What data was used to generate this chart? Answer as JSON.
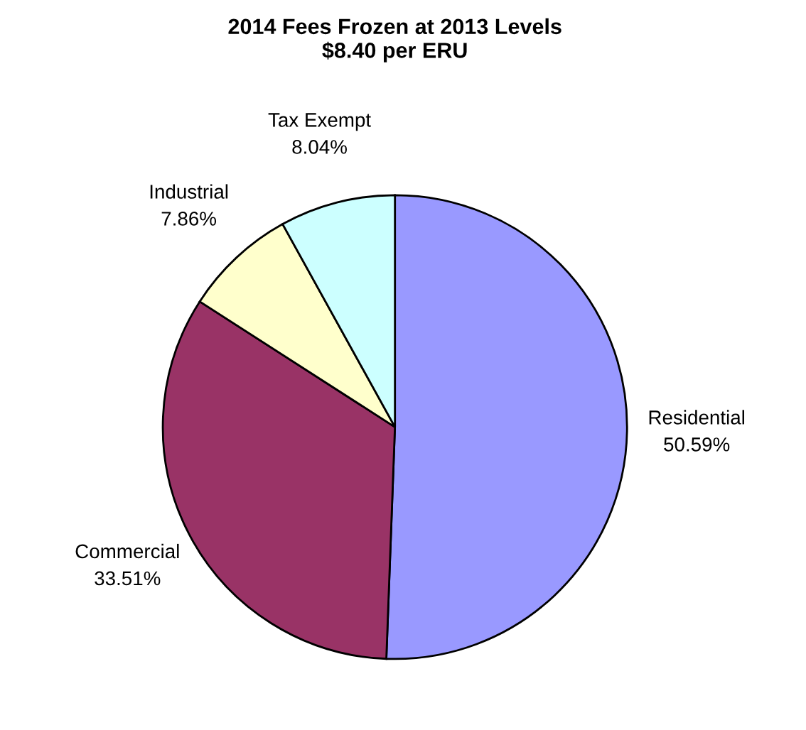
{
  "chart_data": {
    "type": "pie",
    "title": "2014 Fees Frozen at 2013 Levels\n$8.40 per ERU",
    "categories": [
      "Residential",
      "Commercial",
      "Industrial",
      "Tax Exempt"
    ],
    "values": [
      50.59,
      33.51,
      7.86,
      8.04
    ],
    "value_labels": [
      "50.59%",
      "33.51%",
      "7.86%",
      "8.04%"
    ],
    "colors": [
      "#9999ff",
      "#993366",
      "#ffffcc",
      "#ccffff"
    ],
    "legend": false
  }
}
